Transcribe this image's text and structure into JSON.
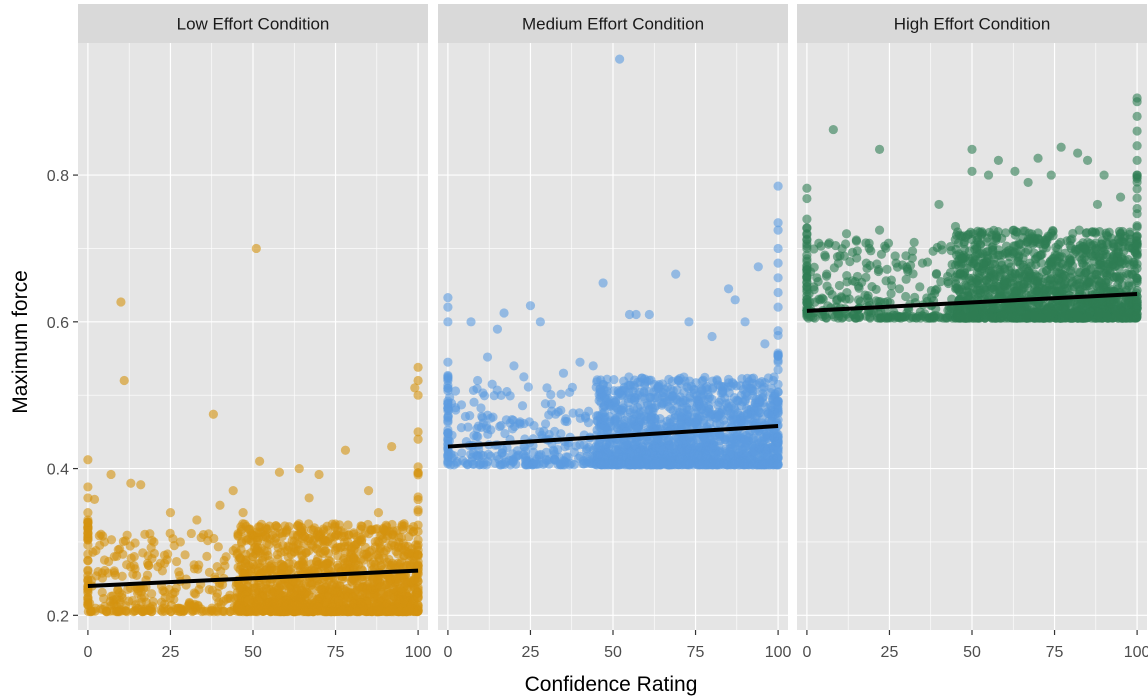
{
  "chart_data": {
    "type": "scatter",
    "title": "",
    "xlabel": "Confidence Rating",
    "ylabel": "Maximum force",
    "xlim": [
      -3,
      103
    ],
    "ylim": [
      0.18,
      0.98
    ],
    "x_ticks": [
      0,
      25,
      50,
      75,
      100
    ],
    "y_ticks": [
      0.2,
      0.4,
      0.6,
      0.8
    ],
    "x_tick_labels": [
      "0",
      "25",
      "50",
      "75",
      "100"
    ],
    "y_tick_labels": [
      "0.2",
      "0.4",
      "0.6",
      "0.8"
    ],
    "grid": true,
    "legend": "none",
    "panel_background": "#e5e5e5",
    "grid_color": "#ffffff",
    "strip_background": "#d9d9d9",
    "fit_line_color": "#000000",
    "panels": [
      {
        "label": "Low Effort Condition",
        "color": "#d4920f",
        "fit": {
          "x": [
            0,
            100
          ],
          "y": [
            0.24,
            0.261
          ]
        },
        "baseline": 0.205,
        "points": [
          [
            0,
            0.412
          ],
          [
            0,
            0.375
          ],
          [
            0,
            0.36
          ],
          [
            0,
            0.34
          ],
          [
            0,
            0.33
          ],
          [
            10,
            0.627
          ],
          [
            11,
            0.52
          ],
          [
            38,
            0.474
          ],
          [
            51,
            0.7
          ],
          [
            7,
            0.392
          ],
          [
            2,
            0.358
          ],
          [
            13,
            0.38
          ],
          [
            16,
            0.378
          ],
          [
            100,
            0.538
          ],
          [
            100,
            0.52
          ],
          [
            100,
            0.5
          ],
          [
            100,
            0.45
          ],
          [
            100,
            0.44
          ],
          [
            99,
            0.51
          ],
          [
            92,
            0.43
          ],
          [
            78,
            0.425
          ],
          [
            52,
            0.41
          ],
          [
            64,
            0.4
          ],
          [
            58,
            0.395
          ],
          [
            70,
            0.392
          ],
          [
            44,
            0.37
          ],
          [
            85,
            0.37
          ],
          [
            40,
            0.35
          ],
          [
            67,
            0.36
          ],
          [
            25,
            0.34
          ],
          [
            33,
            0.33
          ],
          [
            88,
            0.34
          ],
          [
            5,
            0.3
          ],
          [
            8,
            0.28
          ],
          [
            20,
            0.3
          ],
          [
            28,
            0.3
          ],
          [
            35,
            0.31
          ],
          [
            47,
            0.34
          ]
        ]
      },
      {
        "label": "Medium Effort Condition",
        "color": "#5b9be0",
        "fit": {
          "x": [
            0,
            100
          ],
          "y": [
            0.43,
            0.458
          ]
        },
        "baseline": 0.405,
        "points": [
          [
            0,
            0.633
          ],
          [
            0,
            0.62
          ],
          [
            0,
            0.6
          ],
          [
            0,
            0.545
          ],
          [
            0,
            0.52
          ],
          [
            52,
            0.958
          ],
          [
            100,
            0.785
          ],
          [
            100,
            0.735
          ],
          [
            100,
            0.725
          ],
          [
            100,
            0.7
          ],
          [
            100,
            0.68
          ],
          [
            100,
            0.66
          ],
          [
            100,
            0.64
          ],
          [
            100,
            0.62
          ],
          [
            7,
            0.6
          ],
          [
            17,
            0.612
          ],
          [
            25,
            0.622
          ],
          [
            28,
            0.6
          ],
          [
            15,
            0.59
          ],
          [
            47,
            0.653
          ],
          [
            55,
            0.61
          ],
          [
            57,
            0.61
          ],
          [
            61,
            0.61
          ],
          [
            69,
            0.665
          ],
          [
            85,
            0.645
          ],
          [
            87,
            0.63
          ],
          [
            94,
            0.675
          ],
          [
            73,
            0.6
          ],
          [
            80,
            0.58
          ],
          [
            12,
            0.552
          ],
          [
            20,
            0.54
          ],
          [
            23,
            0.525
          ],
          [
            40,
            0.545
          ],
          [
            44,
            0.54
          ],
          [
            90,
            0.6
          ],
          [
            96,
            0.57
          ],
          [
            30,
            0.51
          ],
          [
            35,
            0.53
          ],
          [
            9,
            0.52
          ]
        ]
      },
      {
        "label": "High Effort Condition",
        "color": "#2e7d54",
        "fit": {
          "x": [
            0,
            100
          ],
          "y": [
            0.615,
            0.638
          ]
        },
        "baseline": 0.605,
        "points": [
          [
            0,
            0.782
          ],
          [
            0,
            0.768
          ],
          [
            0,
            0.74
          ],
          [
            0,
            0.72
          ],
          [
            0,
            0.7
          ],
          [
            8,
            0.862
          ],
          [
            22,
            0.835
          ],
          [
            50,
            0.835
          ],
          [
            58,
            0.82
          ],
          [
            70,
            0.823
          ],
          [
            77,
            0.838
          ],
          [
            82,
            0.83
          ],
          [
            85,
            0.82
          ],
          [
            100,
            0.905
          ],
          [
            100,
            0.9
          ],
          [
            100,
            0.88
          ],
          [
            100,
            0.86
          ],
          [
            100,
            0.84
          ],
          [
            100,
            0.82
          ],
          [
            100,
            0.8
          ],
          [
            50,
            0.805
          ],
          [
            55,
            0.8
          ],
          [
            63,
            0.805
          ],
          [
            74,
            0.8
          ],
          [
            90,
            0.8
          ],
          [
            12,
            0.72
          ],
          [
            15,
            0.71
          ],
          [
            22,
            0.725
          ],
          [
            30,
            0.69
          ],
          [
            40,
            0.76
          ],
          [
            45,
            0.73
          ],
          [
            10,
            0.69
          ],
          [
            18,
            0.68
          ],
          [
            27,
            0.68
          ],
          [
            35,
            0.68
          ],
          [
            6,
            0.665
          ],
          [
            3,
            0.66
          ],
          [
            95,
            0.77
          ],
          [
            88,
            0.76
          ],
          [
            67,
            0.79
          ]
        ]
      }
    ]
  }
}
